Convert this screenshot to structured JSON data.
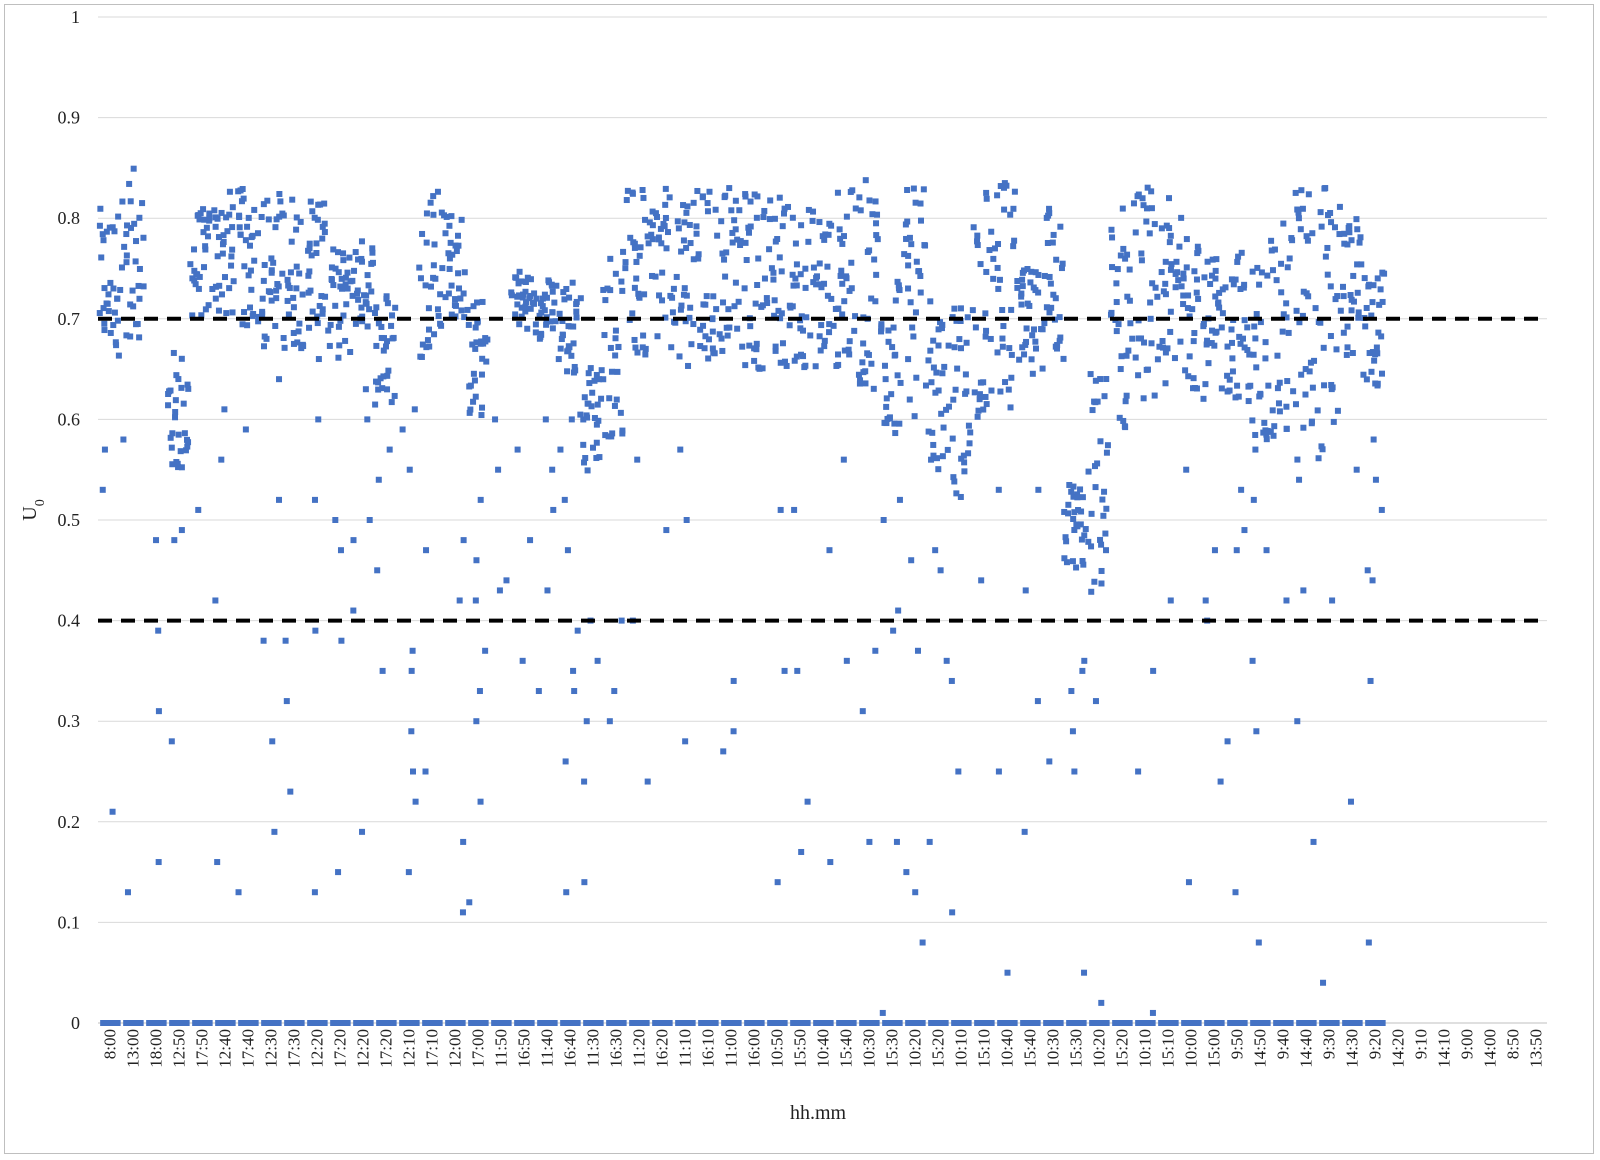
{
  "chart_data": {
    "type": "scatter",
    "title": "",
    "xlabel": "hh.mm",
    "ylabel_main": "U",
    "ylabel_sub": "0",
    "ylim": [
      0,
      1
    ],
    "yticks": [
      0,
      0.1,
      0.2,
      0.3,
      0.4,
      0.5,
      0.6,
      0.7,
      0.8,
      0.9,
      1
    ],
    "ytick_labels": [
      "0",
      "0.1",
      "0.2",
      "0.3",
      "0.4",
      "0.5",
      "0.6",
      "0.7",
      "0.8",
      "0.9",
      "1"
    ],
    "xtick_labels": [
      "8:00",
      "13:00",
      "18:00",
      "12:50",
      "17:50",
      "12:40",
      "17:40",
      "12:30",
      "17:30",
      "12:20",
      "17:20",
      "12:20",
      "17:20",
      "12:10",
      "17:10",
      "12:00",
      "17:00",
      "11:50",
      "16:50",
      "11:40",
      "16:40",
      "11:30",
      "16:30",
      "11:20",
      "16:20",
      "11:10",
      "16:10",
      "11:00",
      "16:00",
      "10:50",
      "15:50",
      "10:40",
      "15:40",
      "10:30",
      "15:30",
      "10:20",
      "15:20",
      "10:10",
      "15:10",
      "10:40",
      "15:40",
      "10:30",
      "15:30",
      "10:20",
      "15:20",
      "10:10",
      "15:10",
      "10:00",
      "15:00",
      "9:50",
      "14:50",
      "9:40",
      "14:40",
      "9:30",
      "14:30",
      "9:20",
      "14:20",
      "9:10",
      "14:10",
      "9:00",
      "14:00",
      "8:50",
      "13:50"
    ],
    "reference_lines": [
      {
        "y": 0.7,
        "style": "dashed",
        "color": "#000000"
      },
      {
        "y": 0.4,
        "style": "dashed",
        "color": "#000000"
      }
    ],
    "grid": true,
    "legend": "none",
    "series": [
      {
        "color": "#4472c4",
        "groups": [
          {
            "center": 0.5,
            "lo": 0.66,
            "hi": 0.81,
            "outliers": [
              0.57,
              0.53,
              0.21
            ]
          },
          {
            "center": 1.5,
            "lo": 0.68,
            "hi": 0.85,
            "outliers": [
              0.58,
              0.13
            ]
          },
          {
            "center": 2.5,
            "lo": 0.0,
            "hi": 0.0,
            "outliers": [
              0.48,
              0.39,
              0.31,
              0.16
            ]
          },
          {
            "center": 3.5,
            "lo": 0.54,
            "hi": 0.67,
            "outliers": [
              0.49,
              0.48,
              0.28
            ]
          },
          {
            "center": 4.5,
            "lo": 0.7,
            "hi": 0.81,
            "outliers": [
              0.51
            ]
          },
          {
            "center": 5.5,
            "lo": 0.7,
            "hi": 0.83,
            "outliers": [
              0.61,
              0.56,
              0.42,
              0.16
            ]
          },
          {
            "center": 6.5,
            "lo": 0.69,
            "hi": 0.83,
            "outliers": [
              0.59,
              0.13
            ]
          },
          {
            "center": 7.5,
            "lo": 0.67,
            "hi": 0.83,
            "outliers": [
              0.64,
              0.52,
              0.38,
              0.28,
              0.19
            ]
          },
          {
            "center": 8.5,
            "lo": 0.67,
            "hi": 0.83,
            "outliers": [
              0.38,
              0.32,
              0.23
            ]
          },
          {
            "center": 9.5,
            "lo": 0.68,
            "hi": 0.83,
            "outliers": [
              0.66,
              0.6,
              0.52,
              0.39,
              0.13
            ]
          },
          {
            "center": 10.5,
            "lo": 0.66,
            "hi": 0.77,
            "outliers": [
              0.5,
              0.47,
              0.38,
              0.15
            ]
          },
          {
            "center": 11.5,
            "lo": 0.69,
            "hi": 0.78,
            "outliers": [
              0.63,
              0.6,
              0.5,
              0.48,
              0.41,
              0.19
            ]
          },
          {
            "center": 12.5,
            "lo": 0.61,
            "hi": 0.73,
            "outliers": [
              0.57,
              0.54,
              0.45,
              0.35
            ]
          },
          {
            "center": 13.5,
            "lo": 0.0,
            "hi": 0.0,
            "outliers": [
              0.61,
              0.59,
              0.55,
              0.37,
              0.35,
              0.29,
              0.25,
              0.22,
              0.15
            ]
          },
          {
            "center": 14.5,
            "lo": 0.66,
            "hi": 0.83,
            "outliers": [
              0.47,
              0.25
            ]
          },
          {
            "center": 15.5,
            "lo": 0.7,
            "hi": 0.81,
            "outliers": [
              0.76,
              0.48,
              0.42,
              0.18,
              0.11
            ]
          },
          {
            "center": 16.5,
            "lo": 0.6,
            "hi": 0.72,
            "outliers": [
              0.52,
              0.46,
              0.42,
              0.37,
              0.33,
              0.3,
              0.22,
              0.12
            ]
          },
          {
            "center": 17.5,
            "lo": 0.0,
            "hi": 0.0,
            "outliers": [
              0.6,
              0.55,
              0.44,
              0.43
            ]
          },
          {
            "center": 18.5,
            "lo": 0.69,
            "hi": 0.75,
            "outliers": [
              0.57,
              0.48,
              0.36
            ]
          },
          {
            "center": 19.5,
            "lo": 0.68,
            "hi": 0.74,
            "outliers": [
              0.6,
              0.55,
              0.51,
              0.43,
              0.33
            ]
          },
          {
            "center": 20.5,
            "lo": 0.64,
            "hi": 0.74,
            "outliers": [
              0.6,
              0.57,
              0.52,
              0.47,
              0.39,
              0.35,
              0.33,
              0.26,
              0.13
            ]
          },
          {
            "center": 21.5,
            "lo": 0.54,
            "hi": 0.66,
            "outliers": [
              0.4,
              0.36,
              0.3,
              0.24,
              0.14
            ]
          },
          {
            "center": 22.5,
            "lo": 0.58,
            "hi": 0.77,
            "outliers": [
              0.4,
              0.33,
              0.3
            ]
          },
          {
            "center": 23.5,
            "lo": 0.65,
            "hi": 0.83,
            "outliers": [
              0.74,
              0.56,
              0.4,
              0.24
            ]
          },
          {
            "center": 24.5,
            "lo": 0.66,
            "hi": 0.83,
            "outliers": [
              0.49
            ]
          },
          {
            "center": 25.5,
            "lo": 0.65,
            "hi": 0.83,
            "outliers": [
              0.57,
              0.5,
              0.28
            ]
          },
          {
            "center": 26.5,
            "lo": 0.64,
            "hi": 0.83,
            "outliers": []
          },
          {
            "center": 27.5,
            "lo": 0.66,
            "hi": 0.84,
            "outliers": [
              0.34,
              0.29,
              0.27
            ]
          },
          {
            "center": 28.5,
            "lo": 0.65,
            "hi": 0.83,
            "outliers": []
          },
          {
            "center": 29.5,
            "lo": 0.65,
            "hi": 0.83,
            "outliers": [
              0.51,
              0.35,
              0.14
            ]
          },
          {
            "center": 30.5,
            "lo": 0.65,
            "hi": 0.82,
            "outliers": [
              0.51,
              0.35,
              0.22,
              0.17
            ]
          },
          {
            "center": 31.5,
            "lo": 0.65,
            "hi": 0.81,
            "outliers": [
              0.47,
              0.16
            ]
          },
          {
            "center": 32.5,
            "lo": 0.65,
            "hi": 0.83,
            "outliers": [
              0.56,
              0.36
            ]
          },
          {
            "center": 33.5,
            "lo": 0.63,
            "hi": 0.84,
            "outliers": [
              0.37,
              0.31,
              0.18
            ]
          },
          {
            "center": 34.5,
            "lo": 0.58,
            "hi": 0.76,
            "outliers": [
              0.52,
              0.5,
              0.41,
              0.39,
              0.18,
              0.01
            ]
          },
          {
            "center": 35.5,
            "lo": 0.6,
            "hi": 0.83,
            "outliers": [
              0.46,
              0.37,
              0.15,
              0.13,
              0.08
            ]
          },
          {
            "center": 36.5,
            "lo": 0.55,
            "hi": 0.72,
            "outliers": [
              0.47,
              0.45,
              0.36,
              0.18
            ]
          },
          {
            "center": 37.5,
            "lo": 0.52,
            "hi": 0.72,
            "outliers": [
              0.34,
              0.25,
              0.11
            ]
          },
          {
            "center": 38.5,
            "lo": 0.6,
            "hi": 0.83,
            "outliers": [
              0.44
            ]
          },
          {
            "center": 39.5,
            "lo": 0.61,
            "hi": 0.84,
            "outliers": [
              0.53,
              0.25,
              0.05
            ]
          },
          {
            "center": 40.5,
            "lo": 0.63,
            "hi": 0.75,
            "outliers": [
              0.53,
              0.43,
              0.32,
              0.19
            ]
          },
          {
            "center": 41.5,
            "lo": 0.65,
            "hi": 0.83,
            "outliers": [
              0.26
            ]
          },
          {
            "center": 42.5,
            "lo": 0.45,
            "hi": 0.54,
            "outliers": [
              0.36,
              0.35,
              0.33,
              0.29,
              0.25,
              0.05
            ]
          },
          {
            "center": 43.5,
            "lo": 0.42,
            "hi": 0.65,
            "outliers": [
              0.47,
              0.32,
              0.02
            ]
          },
          {
            "center": 44.5,
            "lo": 0.58,
            "hi": 0.82,
            "outliers": []
          },
          {
            "center": 45.5,
            "lo": 0.62,
            "hi": 0.84,
            "outliers": [
              0.35,
              0.25,
              0.01
            ]
          },
          {
            "center": 46.5,
            "lo": 0.62,
            "hi": 0.82,
            "outliers": [
              0.42
            ]
          },
          {
            "center": 47.5,
            "lo": 0.63,
            "hi": 0.82,
            "outliers": [
              0.55,
              0.14
            ]
          },
          {
            "center": 48.5,
            "lo": 0.62,
            "hi": 0.76,
            "outliers": [
              0.47,
              0.42,
              0.4,
              0.24
            ]
          },
          {
            "center": 49.5,
            "lo": 0.62,
            "hi": 0.77,
            "outliers": [
              0.53,
              0.49,
              0.47,
              0.28,
              0.13
            ]
          },
          {
            "center": 50.5,
            "lo": 0.58,
            "hi": 0.76,
            "outliers": [
              0.57,
              0.52,
              0.47,
              0.36,
              0.29,
              0.08
            ]
          },
          {
            "center": 51.5,
            "lo": 0.57,
            "hi": 0.8,
            "outliers": [
              0.42
            ]
          },
          {
            "center": 52.5,
            "lo": 0.55,
            "hi": 0.84,
            "outliers": [
              0.54,
              0.43,
              0.3,
              0.18
            ]
          },
          {
            "center": 53.5,
            "lo": 0.56,
            "hi": 0.84,
            "outliers": [
              0.42,
              0.04
            ]
          },
          {
            "center": 54.5,
            "lo": 0.66,
            "hi": 0.8,
            "outliers": [
              0.55,
              0.22
            ]
          },
          {
            "center": 55.5,
            "lo": 0.63,
            "hi": 0.75,
            "outliers": [
              0.58,
              0.54,
              0.51,
              0.45,
              0.44,
              0.34,
              0.08
            ]
          }
        ]
      }
    ]
  }
}
